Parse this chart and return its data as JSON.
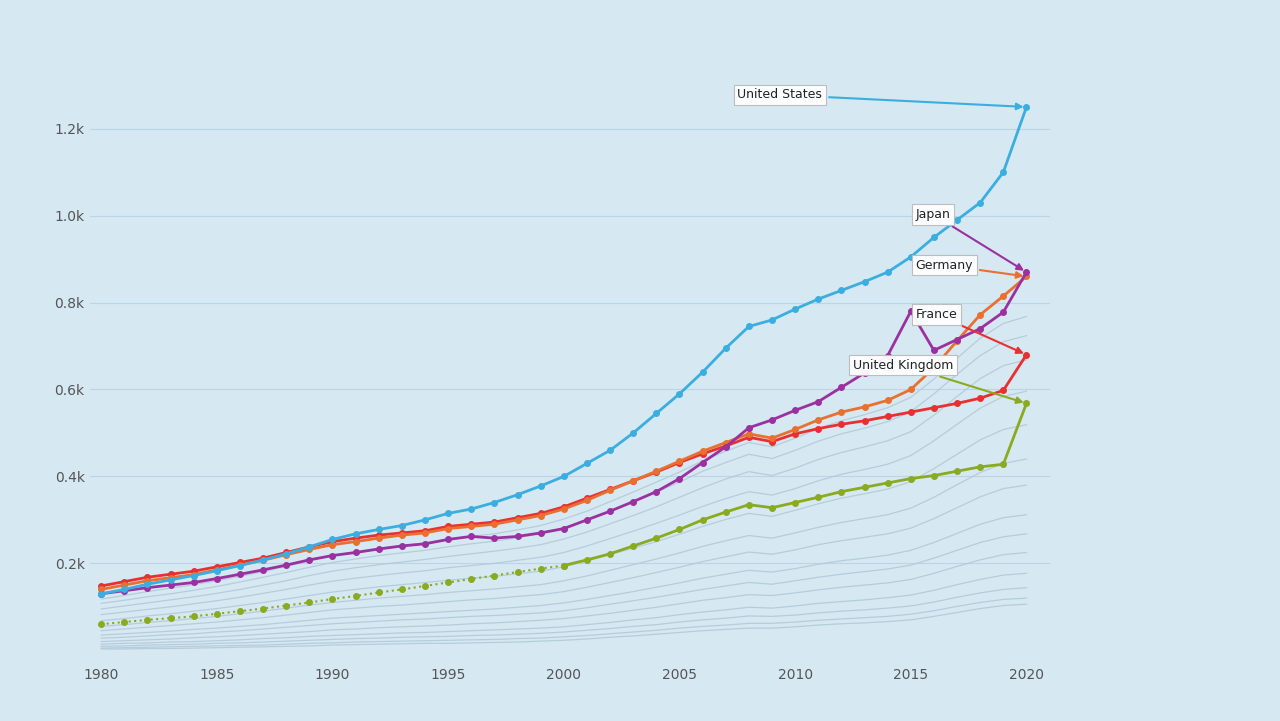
{
  "background_color": "#d6e8f2",
  "plot_bg_color": "#d6e8f2",
  "xlim": [
    1979.5,
    2021
  ],
  "ylim": [
    -30,
    1380
  ],
  "yticks": [
    200,
    400,
    600,
    800,
    1000,
    1200
  ],
  "ytick_labels": [
    "0.2k",
    "0.4k",
    "0.6k",
    "0.8k",
    "1.0k",
    "1.2k"
  ],
  "xticks": [
    1980,
    1985,
    1990,
    1995,
    2000,
    2005,
    2010,
    2015,
    2020
  ],
  "grid_color": "#bcd4e4",
  "series": {
    "United States": {
      "color": "#3baee0",
      "linewidth": 2.0,
      "marker": "o",
      "markersize": 4,
      "linestyle": "-",
      "zorder": 10,
      "years": [
        1980,
        1981,
        1982,
        1983,
        1984,
        1985,
        1986,
        1987,
        1988,
        1989,
        1990,
        1991,
        1992,
        1993,
        1994,
        1995,
        1996,
        1997,
        1998,
        1999,
        2000,
        2001,
        2002,
        2003,
        2004,
        2005,
        2006,
        2007,
        2008,
        2009,
        2010,
        2011,
        2012,
        2013,
        2014,
        2015,
        2016,
        2017,
        2018,
        2019,
        2020
      ],
      "values": [
        130,
        140,
        152,
        162,
        172,
        183,
        195,
        208,
        222,
        238,
        255,
        268,
        278,
        287,
        300,
        315,
        325,
        340,
        358,
        378,
        400,
        430,
        460,
        500,
        545,
        590,
        640,
        695,
        745,
        760,
        785,
        808,
        828,
        848,
        870,
        905,
        950,
        990,
        1030,
        1100,
        1250
      ]
    },
    "France": {
      "color": "#e83030",
      "linewidth": 2.0,
      "marker": "o",
      "markersize": 4,
      "linestyle": "-",
      "zorder": 9,
      "years": [
        1980,
        1981,
        1982,
        1983,
        1984,
        1985,
        1986,
        1987,
        1988,
        1989,
        1990,
        1991,
        1992,
        1993,
        1994,
        1995,
        1996,
        1997,
        1998,
        1999,
        2000,
        2001,
        2002,
        2003,
        2004,
        2005,
        2006,
        2007,
        2008,
        2009,
        2010,
        2011,
        2012,
        2013,
        2014,
        2015,
        2016,
        2017,
        2018,
        2019,
        2020
      ],
      "values": [
        148,
        158,
        168,
        175,
        182,
        192,
        202,
        212,
        225,
        238,
        250,
        258,
        265,
        270,
        275,
        285,
        290,
        295,
        305,
        315,
        330,
        350,
        370,
        390,
        410,
        432,
        452,
        470,
        490,
        480,
        498,
        510,
        520,
        528,
        538,
        548,
        558,
        568,
        580,
        598,
        680
      ]
    },
    "Germany": {
      "color": "#e87030",
      "linewidth": 2.0,
      "marker": "o",
      "markersize": 4,
      "linestyle": "-",
      "zorder": 9,
      "years": [
        1980,
        1981,
        1982,
        1983,
        1984,
        1985,
        1986,
        1987,
        1988,
        1989,
        1990,
        1991,
        1992,
        1993,
        1994,
        1995,
        1996,
        1997,
        1998,
        1999,
        2000,
        2001,
        2002,
        2003,
        2004,
        2005,
        2006,
        2007,
        2008,
        2009,
        2010,
        2011,
        2012,
        2013,
        2014,
        2015,
        2016,
        2017,
        2018,
        2019,
        2020
      ],
      "values": [
        140,
        150,
        160,
        167,
        174,
        185,
        196,
        207,
        220,
        232,
        243,
        250,
        258,
        265,
        270,
        280,
        285,
        290,
        300,
        310,
        325,
        345,
        368,
        390,
        412,
        435,
        458,
        478,
        498,
        488,
        508,
        530,
        548,
        560,
        575,
        600,
        650,
        712,
        772,
        815,
        860
      ]
    },
    "Japan": {
      "color": "#9b30a0",
      "linewidth": 2.0,
      "marker": "o",
      "markersize": 4,
      "linestyle": "-",
      "zorder": 9,
      "years": [
        1980,
        1981,
        1982,
        1983,
        1984,
        1985,
        1986,
        1987,
        1988,
        1989,
        1990,
        1991,
        1992,
        1993,
        1994,
        1995,
        1996,
        1997,
        1998,
        1999,
        2000,
        2001,
        2002,
        2003,
        2004,
        2005,
        2006,
        2007,
        2008,
        2009,
        2010,
        2011,
        2012,
        2013,
        2014,
        2015,
        2016,
        2017,
        2018,
        2019,
        2020
      ],
      "values": [
        130,
        137,
        144,
        150,
        156,
        165,
        175,
        185,
        196,
        208,
        218,
        225,
        233,
        240,
        245,
        255,
        262,
        258,
        262,
        270,
        280,
        300,
        320,
        342,
        365,
        395,
        432,
        468,
        512,
        530,
        552,
        572,
        605,
        638,
        678,
        780,
        690,
        715,
        740,
        778,
        870
      ]
    },
    "United Kingdom": {
      "color": "#8aaa20",
      "linewidth": 2.0,
      "marker": "o",
      "markersize": 4,
      "linestyle": "-",
      "zorder": 9,
      "years": [
        2000,
        2001,
        2002,
        2003,
        2004,
        2005,
        2006,
        2007,
        2008,
        2009,
        2010,
        2011,
        2012,
        2013,
        2014,
        2015,
        2016,
        2017,
        2018,
        2019,
        2020
      ],
      "values": [
        195,
        208,
        222,
        240,
        258,
        278,
        300,
        318,
        335,
        328,
        340,
        352,
        365,
        375,
        385,
        395,
        402,
        412,
        422,
        428,
        568
      ]
    },
    "United Kingdom dotted": {
      "color": "#8aaa20",
      "linewidth": 1.5,
      "marker": "o",
      "markersize": 4,
      "linestyle": ":",
      "zorder": 9,
      "years": [
        1980,
        1981,
        1982,
        1983,
        1984,
        1985,
        1986,
        1987,
        1988,
        1989,
        1990,
        1991,
        1992,
        1993,
        1994,
        1995,
        1996,
        1997,
        1998,
        1999,
        2000
      ],
      "values": [
        60,
        65,
        70,
        74,
        78,
        84,
        90,
        96,
        103,
        110,
        118,
        125,
        133,
        140,
        148,
        156,
        164,
        172,
        180,
        188,
        195
      ]
    }
  },
  "grey_series_values": [
    [
      118,
      126,
      135,
      143,
      151,
      160,
      170,
      181,
      193,
      206,
      218,
      227,
      235,
      241,
      247,
      256,
      262,
      268,
      277,
      287,
      302,
      320,
      342,
      364,
      387,
      410,
      436,
      458,
      478,
      468,
      488,
      510,
      528,
      542,
      558,
      582,
      624,
      672,
      718,
      752,
      768
    ],
    [
      108,
      115,
      123,
      130,
      138,
      147,
      157,
      168,
      179,
      191,
      202,
      210,
      218,
      224,
      230,
      238,
      245,
      251,
      259,
      268,
      282,
      300,
      320,
      342,
      364,
      387,
      412,
      432,
      451,
      441,
      460,
      481,
      498,
      511,
      526,
      549,
      590,
      635,
      678,
      710,
      724
    ],
    [
      95,
      102,
      109,
      116,
      123,
      131,
      140,
      150,
      160,
      172,
      182,
      190,
      197,
      203,
      209,
      216,
      222,
      228,
      235,
      243,
      256,
      272,
      291,
      310,
      330,
      352,
      374,
      394,
      411,
      402,
      419,
      439,
      455,
      468,
      482,
      503,
      541,
      584,
      625,
      655,
      668
    ],
    [
      82,
      88,
      94,
      100,
      107,
      114,
      122,
      131,
      140,
      150,
      159,
      166,
      172,
      178,
      183,
      190,
      195,
      200,
      207,
      214,
      225,
      240,
      257,
      274,
      292,
      311,
      331,
      349,
      365,
      357,
      372,
      390,
      405,
      416,
      428,
      448,
      482,
      520,
      557,
      584,
      596
    ],
    [
      68,
      73,
      79,
      84,
      90,
      96,
      103,
      110,
      118,
      126,
      134,
      140,
      146,
      151,
      156,
      161,
      166,
      170,
      176,
      182,
      192,
      205,
      220,
      235,
      250,
      267,
      285,
      301,
      315,
      308,
      322,
      337,
      350,
      360,
      371,
      388,
      418,
      451,
      484,
      508,
      519
    ],
    [
      55,
      59,
      64,
      68,
      73,
      78,
      84,
      90,
      97,
      104,
      110,
      115,
      120,
      124,
      128,
      133,
      137,
      141,
      146,
      151,
      160,
      171,
      184,
      197,
      210,
      224,
      239,
      252,
      264,
      258,
      270,
      283,
      294,
      303,
      312,
      327,
      352,
      381,
      409,
      430,
      440
    ],
    [
      45,
      49,
      53,
      57,
      61,
      65,
      70,
      75,
      81,
      87,
      93,
      97,
      101,
      104,
      108,
      112,
      116,
      119,
      124,
      128,
      135,
      145,
      156,
      167,
      179,
      191,
      204,
      215,
      226,
      221,
      231,
      243,
      252,
      260,
      268,
      281,
      303,
      328,
      353,
      372,
      380
    ],
    [
      35,
      38,
      41,
      44,
      48,
      51,
      55,
      59,
      64,
      69,
      74,
      77,
      80,
      83,
      86,
      89,
      92,
      95,
      99,
      103,
      109,
      117,
      126,
      135,
      145,
      155,
      166,
      175,
      184,
      180,
      188,
      198,
      206,
      212,
      219,
      230,
      248,
      269,
      290,
      305,
      312
    ],
    [
      28,
      30,
      33,
      36,
      38,
      42,
      45,
      49,
      53,
      57,
      61,
      64,
      67,
      70,
      72,
      75,
      78,
      80,
      83,
      86,
      91,
      98,
      106,
      114,
      122,
      131,
      140,
      148,
      156,
      152,
      160,
      168,
      175,
      181,
      187,
      196,
      212,
      230,
      248,
      261,
      268
    ],
    [
      20,
      22,
      24,
      26,
      29,
      31,
      34,
      37,
      40,
      43,
      47,
      49,
      52,
      54,
      56,
      58,
      61,
      63,
      66,
      69,
      73,
      79,
      85,
      92,
      99,
      107,
      115,
      121,
      128,
      126,
      132,
      139,
      145,
      150,
      155,
      163,
      177,
      193,
      208,
      220,
      225
    ],
    [
      14,
      16,
      17,
      19,
      20,
      22,
      24,
      27,
      29,
      32,
      34,
      36,
      38,
      40,
      41,
      43,
      45,
      47,
      49,
      51,
      54,
      59,
      64,
      70,
      75,
      82,
      88,
      93,
      99,
      97,
      102,
      108,
      112,
      116,
      121,
      127,
      138,
      151,
      163,
      173,
      177
    ],
    [
      9,
      10,
      12,
      13,
      14,
      16,
      17,
      19,
      21,
      23,
      25,
      27,
      28,
      30,
      31,
      32,
      34,
      35,
      37,
      39,
      42,
      46,
      50,
      55,
      59,
      65,
      70,
      74,
      79,
      78,
      81,
      86,
      90,
      93,
      97,
      102,
      111,
      122,
      132,
      140,
      144
    ],
    [
      5,
      6,
      7,
      8,
      9,
      10,
      11,
      12,
      14,
      16,
      17,
      19,
      20,
      21,
      22,
      23,
      24,
      25,
      27,
      28,
      31,
      34,
      38,
      42,
      46,
      51,
      55,
      58,
      62,
      62,
      65,
      69,
      72,
      75,
      78,
      83,
      91,
      101,
      110,
      117,
      120
    ],
    [
      3,
      3,
      4,
      4,
      5,
      6,
      7,
      8,
      9,
      10,
      12,
      13,
      14,
      15,
      16,
      16,
      17,
      18,
      19,
      21,
      23,
      26,
      30,
      33,
      37,
      41,
      45,
      48,
      51,
      51,
      54,
      58,
      61,
      63,
      66,
      70,
      78,
      87,
      96,
      103,
      106
    ]
  ],
  "grey_years": [
    1980,
    1981,
    1982,
    1983,
    1984,
    1985,
    1986,
    1987,
    1988,
    1989,
    1990,
    1991,
    1992,
    1993,
    1994,
    1995,
    1996,
    1997,
    1998,
    1999,
    2000,
    2001,
    2002,
    2003,
    2004,
    2005,
    2006,
    2007,
    2008,
    2009,
    2010,
    2011,
    2012,
    2013,
    2014,
    2015,
    2016,
    2017,
    2018,
    2019,
    2020
  ]
}
